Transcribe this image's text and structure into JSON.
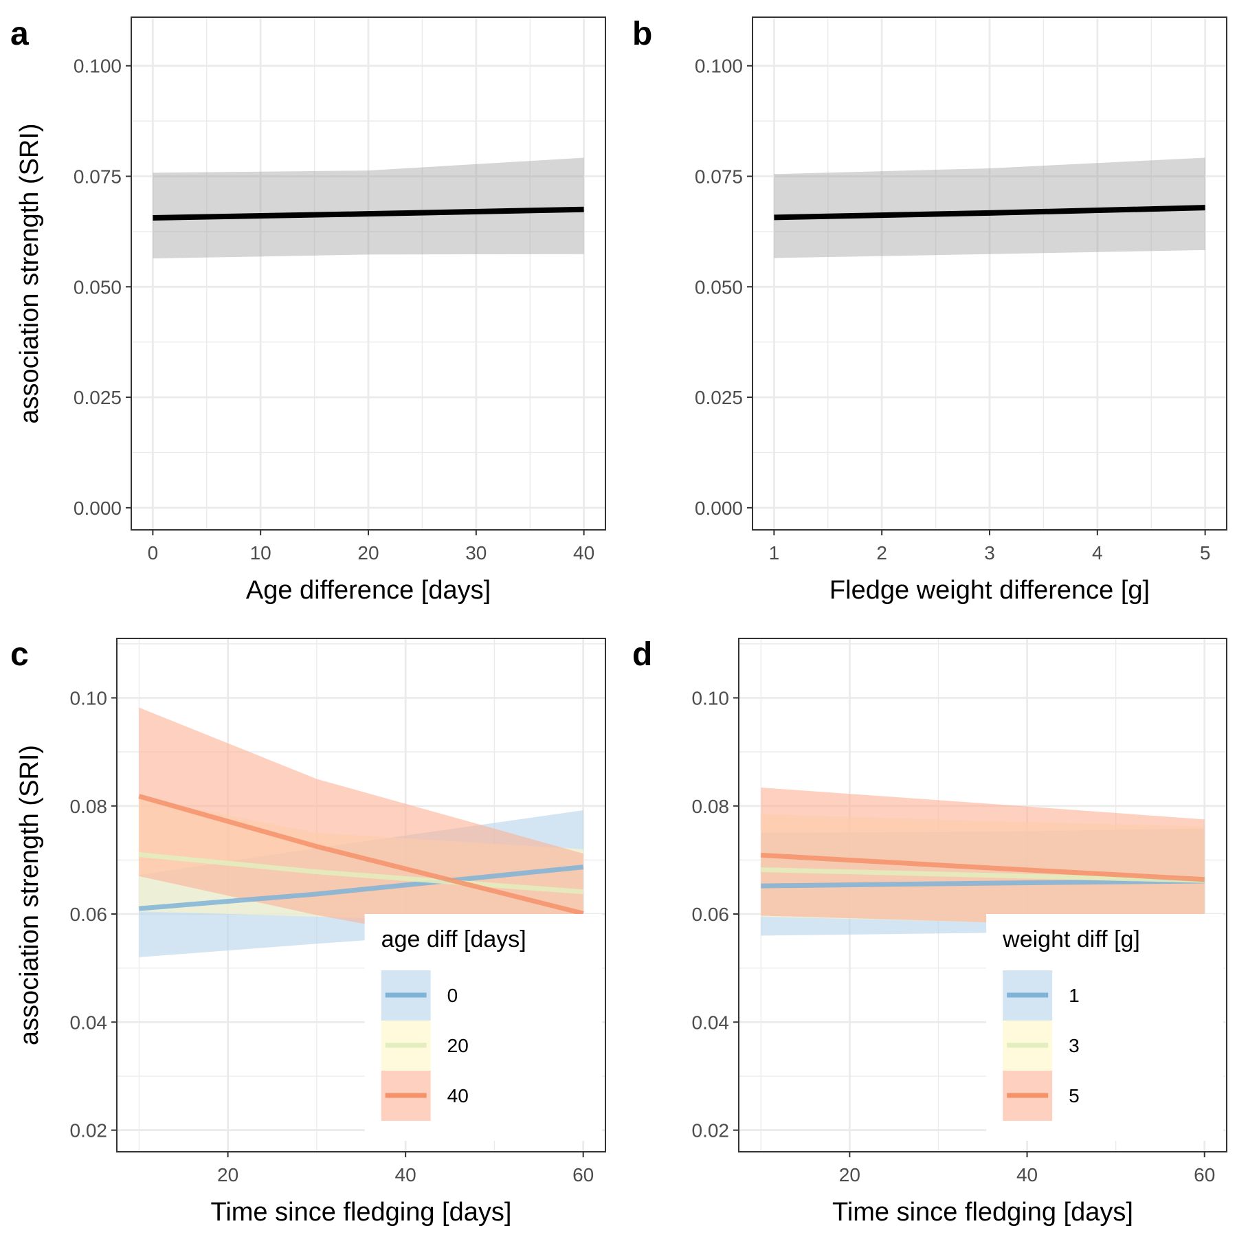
{
  "chart_data": [
    {
      "panel": "a",
      "type": "line",
      "xlabel": "Age difference [days]",
      "ylabel": "association strength (SRI)",
      "xlim": [
        -2,
        42
      ],
      "ylim": [
        -0.005,
        0.111
      ],
      "x_ticks": [
        0,
        10,
        20,
        30,
        40
      ],
      "x_tick_labels": [
        "0",
        "10",
        "20",
        "30",
        "40"
      ],
      "y_ticks": [
        0,
        0.025,
        0.05,
        0.075,
        0.1
      ],
      "y_tick_labels": [
        "0.000",
        "0.025",
        "0.050",
        "0.075",
        "0.100"
      ],
      "grid": true,
      "series": [
        {
          "color": "#000000",
          "x": [
            0,
            20,
            40
          ],
          "y": [
            0.0656,
            0.0665,
            0.0675
          ],
          "lower": [
            0.0564,
            0.0573,
            0.0574
          ],
          "upper": [
            0.0758,
            0.0763,
            0.0792
          ]
        }
      ]
    },
    {
      "panel": "b",
      "type": "line",
      "xlabel": "Fledge weight difference [g]",
      "ylabel": "",
      "xlim": [
        0.8,
        5.2
      ],
      "ylim": [
        -0.005,
        0.111
      ],
      "x_ticks": [
        1,
        2,
        3,
        4,
        5
      ],
      "x_tick_labels": [
        "1",
        "2",
        "3",
        "4",
        "5"
      ],
      "y_ticks": [
        0,
        0.025,
        0.05,
        0.075,
        0.1
      ],
      "y_tick_labels": [
        "0.000",
        "0.025",
        "0.050",
        "0.075",
        "0.100"
      ],
      "grid": true,
      "series": [
        {
          "color": "#000000",
          "x": [
            1,
            3,
            5
          ],
          "y": [
            0.0657,
            0.0667,
            0.0679
          ],
          "lower": [
            0.0565,
            0.0574,
            0.0583
          ],
          "upper": [
            0.0755,
            0.0768,
            0.0792
          ]
        }
      ]
    },
    {
      "panel": "c",
      "type": "line",
      "xlabel": "Time since fledging [days]",
      "ylabel": "association strength (SRI)",
      "xlim": [
        7.5,
        62.5
      ],
      "ylim": [
        0.016,
        0.111
      ],
      "x_ticks": [
        20,
        40,
        60
      ],
      "x_tick_labels": [
        "20",
        "40",
        "60"
      ],
      "y_ticks": [
        0.02,
        0.04,
        0.06,
        0.08,
        0.1
      ],
      "y_tick_labels": [
        "0.02",
        "0.04",
        "0.06",
        "0.08",
        "0.10"
      ],
      "grid": true,
      "legend": {
        "title": "age diff [days]",
        "position": "bottom-right"
      },
      "series": [
        {
          "name": "0",
          "color": "#7fb3d8",
          "fill": "#b5d4ea",
          "x": [
            10,
            30,
            60
          ],
          "y": [
            0.061,
            0.0637,
            0.0687
          ],
          "lower": [
            0.052,
            0.0545,
            0.058
          ],
          "upper": [
            0.0672,
            0.0722,
            0.0792
          ]
        },
        {
          "name": "20",
          "color": "#e2eebd",
          "fill": "#fff7c4",
          "x": [
            10,
            30,
            60
          ],
          "y": [
            0.071,
            0.0678,
            0.0641
          ],
          "lower": [
            0.0605,
            0.0595,
            0.058
          ],
          "upper": [
            0.0815,
            0.075,
            0.072
          ]
        },
        {
          "name": "40",
          "color": "#f4926a",
          "fill": "#fbb096",
          "x": [
            10,
            30,
            60
          ],
          "y": [
            0.0818,
            0.0725,
            0.0601
          ],
          "lower": [
            0.067,
            0.0598,
            0.0508
          ],
          "upper": [
            0.0982,
            0.085,
            0.0712
          ]
        }
      ]
    },
    {
      "panel": "d",
      "type": "line",
      "xlabel": "Time since fledging [days]",
      "ylabel": "",
      "xlim": [
        7.5,
        62.5
      ],
      "ylim": [
        0.016,
        0.111
      ],
      "x_ticks": [
        20,
        40,
        60
      ],
      "x_tick_labels": [
        "20",
        "40",
        "60"
      ],
      "y_ticks": [
        0.02,
        0.04,
        0.06,
        0.08,
        0.1
      ],
      "y_tick_labels": [
        "0.02",
        "0.04",
        "0.06",
        "0.08",
        "0.10"
      ],
      "grid": true,
      "legend": {
        "title": "weight diff [g]",
        "position": "bottom-right"
      },
      "series": [
        {
          "name": "1",
          "color": "#7fb3d8",
          "fill": "#b5d4ea",
          "x": [
            10,
            35,
            60
          ],
          "y": [
            0.0652,
            0.0657,
            0.0661
          ],
          "lower": [
            0.056,
            0.0565,
            0.057
          ],
          "upper": [
            0.075,
            0.0752,
            0.0758
          ]
        },
        {
          "name": "3",
          "color": "#e2eebd",
          "fill": "#fff7c4",
          "x": [
            10,
            35,
            60
          ],
          "y": [
            0.0682,
            0.0672,
            0.0662
          ],
          "lower": [
            0.0595,
            0.0585,
            0.0575
          ],
          "upper": [
            0.0785,
            0.0772,
            0.0762
          ]
        },
        {
          "name": "5",
          "color": "#f4926a",
          "fill": "#fbb096",
          "x": [
            10,
            35,
            60
          ],
          "y": [
            0.0709,
            0.0686,
            0.0664
          ],
          "lower": [
            0.0597,
            0.0585,
            0.0565
          ],
          "upper": [
            0.0834,
            0.0805,
            0.0775
          ]
        }
      ]
    }
  ]
}
